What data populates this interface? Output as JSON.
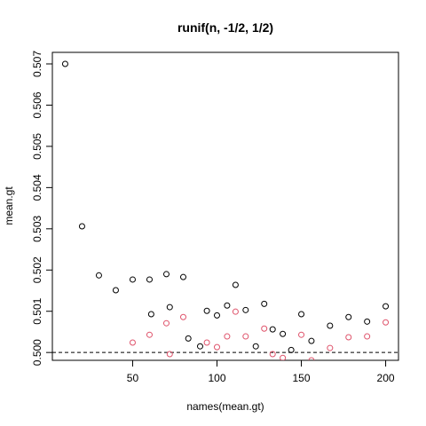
{
  "chart_data": {
    "type": "scatter",
    "title": "runif(n, -1/2, 1/2)",
    "xlabel": "names(mean.gt)",
    "ylabel": "mean.gt",
    "xlim": [
      2.4,
      207.6
    ],
    "ylim": [
      0.49981,
      0.50728
    ],
    "xticks": [
      50,
      100,
      150,
      200
    ],
    "yticks": [
      {
        "value": 0.5,
        "label": "0.500"
      },
      {
        "value": 0.501,
        "label": "0.501"
      },
      {
        "value": 0.502,
        "label": "0.502"
      },
      {
        "value": 0.503,
        "label": "0.503"
      },
      {
        "value": 0.504,
        "label": "0.504"
      },
      {
        "value": 0.505,
        "label": "0.505"
      },
      {
        "value": 0.506,
        "label": "0.506"
      },
      {
        "value": 0.507,
        "label": "0.507"
      }
    ],
    "hline": 0.5,
    "hline_style": "dashed",
    "series": [
      {
        "color": "#000000",
        "x": [
          10,
          20,
          30,
          40,
          50,
          60,
          61,
          70,
          72,
          80,
          83,
          90,
          94,
          100,
          106,
          111,
          117,
          123,
          128,
          133,
          139,
          144,
          150,
          156,
          167,
          178,
          189,
          200
        ],
        "values": [
          0.507,
          0.50306,
          0.50187,
          0.50151,
          0.50177,
          0.50177,
          0.50093,
          0.5019,
          0.5011,
          0.50183,
          0.50034,
          0.50015,
          0.50101,
          0.5009,
          0.50114,
          0.50164,
          0.50103,
          0.50015,
          0.50118,
          0.50056,
          0.50045,
          0.50006,
          0.50093,
          0.50028,
          0.50065,
          0.50086,
          0.50075,
          0.50112
        ]
      },
      {
        "color": "#DF536B",
        "x": [
          50,
          60,
          70,
          72,
          80,
          94,
          100,
          106,
          111,
          117,
          128,
          133,
          139,
          150,
          156,
          167,
          178,
          189,
          200
        ],
        "values": [
          0.50024,
          0.50043,
          0.50071,
          0.49996,
          0.50086,
          0.50024,
          0.50013,
          0.50039,
          0.50099,
          0.50039,
          0.50058,
          0.49996,
          0.49987,
          0.50043,
          0.49981,
          0.50011,
          0.50037,
          0.50039,
          0.50073
        ]
      }
    ]
  }
}
